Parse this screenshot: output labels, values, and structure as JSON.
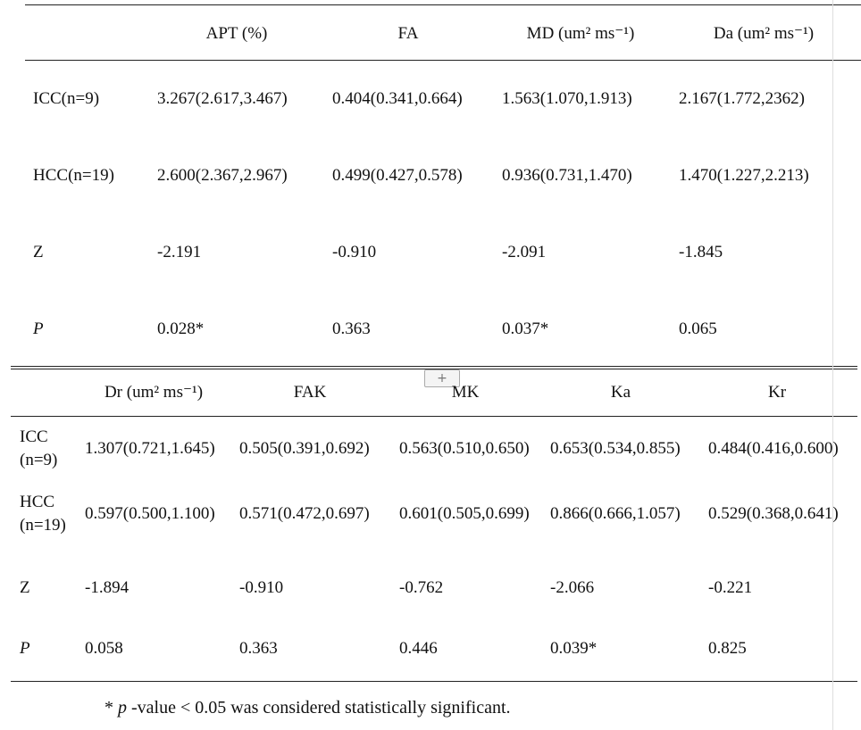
{
  "table1": {
    "headers": [
      "APT (%)",
      "FA",
      "MD (um² ms⁻¹)",
      "Da (um² ms⁻¹)"
    ],
    "rows": [
      [
        "ICC(n=9)",
        "3.267(2.617,3.467)",
        "0.404(0.341,0.664)",
        "1.563(1.070,1.913)",
        "2.167(1.772,2362)"
      ],
      [
        "HCC(n=19)",
        "2.600(2.367,2.967)",
        "0.499(0.427,0.578)",
        "0.936(0.731,1.470)",
        "1.470(1.227,2.213)"
      ],
      [
        "Z",
        "-2.191",
        "-0.910",
        "-2.091",
        "-1.845"
      ],
      [
        "P",
        "0.028*",
        "0.363",
        "0.037*",
        "0.065"
      ]
    ]
  },
  "table2": {
    "headers": [
      "Dr (um² ms⁻¹)",
      "FAK",
      "MK",
      "Ka",
      "Kr"
    ],
    "rows": [
      [
        "ICC (n=9)",
        "1.307(0.721,1.645)",
        "0.505(0.391,0.692)",
        "0.563(0.510,0.650)",
        "0.653(0.534,0.855)",
        "0.484(0.416,0.600)"
      ],
      [
        "HCC (n=19)",
        "0.597(0.500,1.100)",
        "0.571(0.472,0.697)",
        "0.601(0.505,0.699)",
        "0.866(0.666,1.057)",
        "0.529(0.368,0.641)"
      ],
      [
        "Z",
        "-1.894",
        "-0.910",
        "-0.762",
        "-2.066",
        "-0.221"
      ],
      [
        "P",
        "0.058",
        "0.363",
        "0.446",
        "0.039*",
        "0.825"
      ]
    ]
  },
  "footnote": {
    "mark": "*",
    "symbol": "p",
    "text": "-value < 0.05 was considered statistically significant."
  }
}
